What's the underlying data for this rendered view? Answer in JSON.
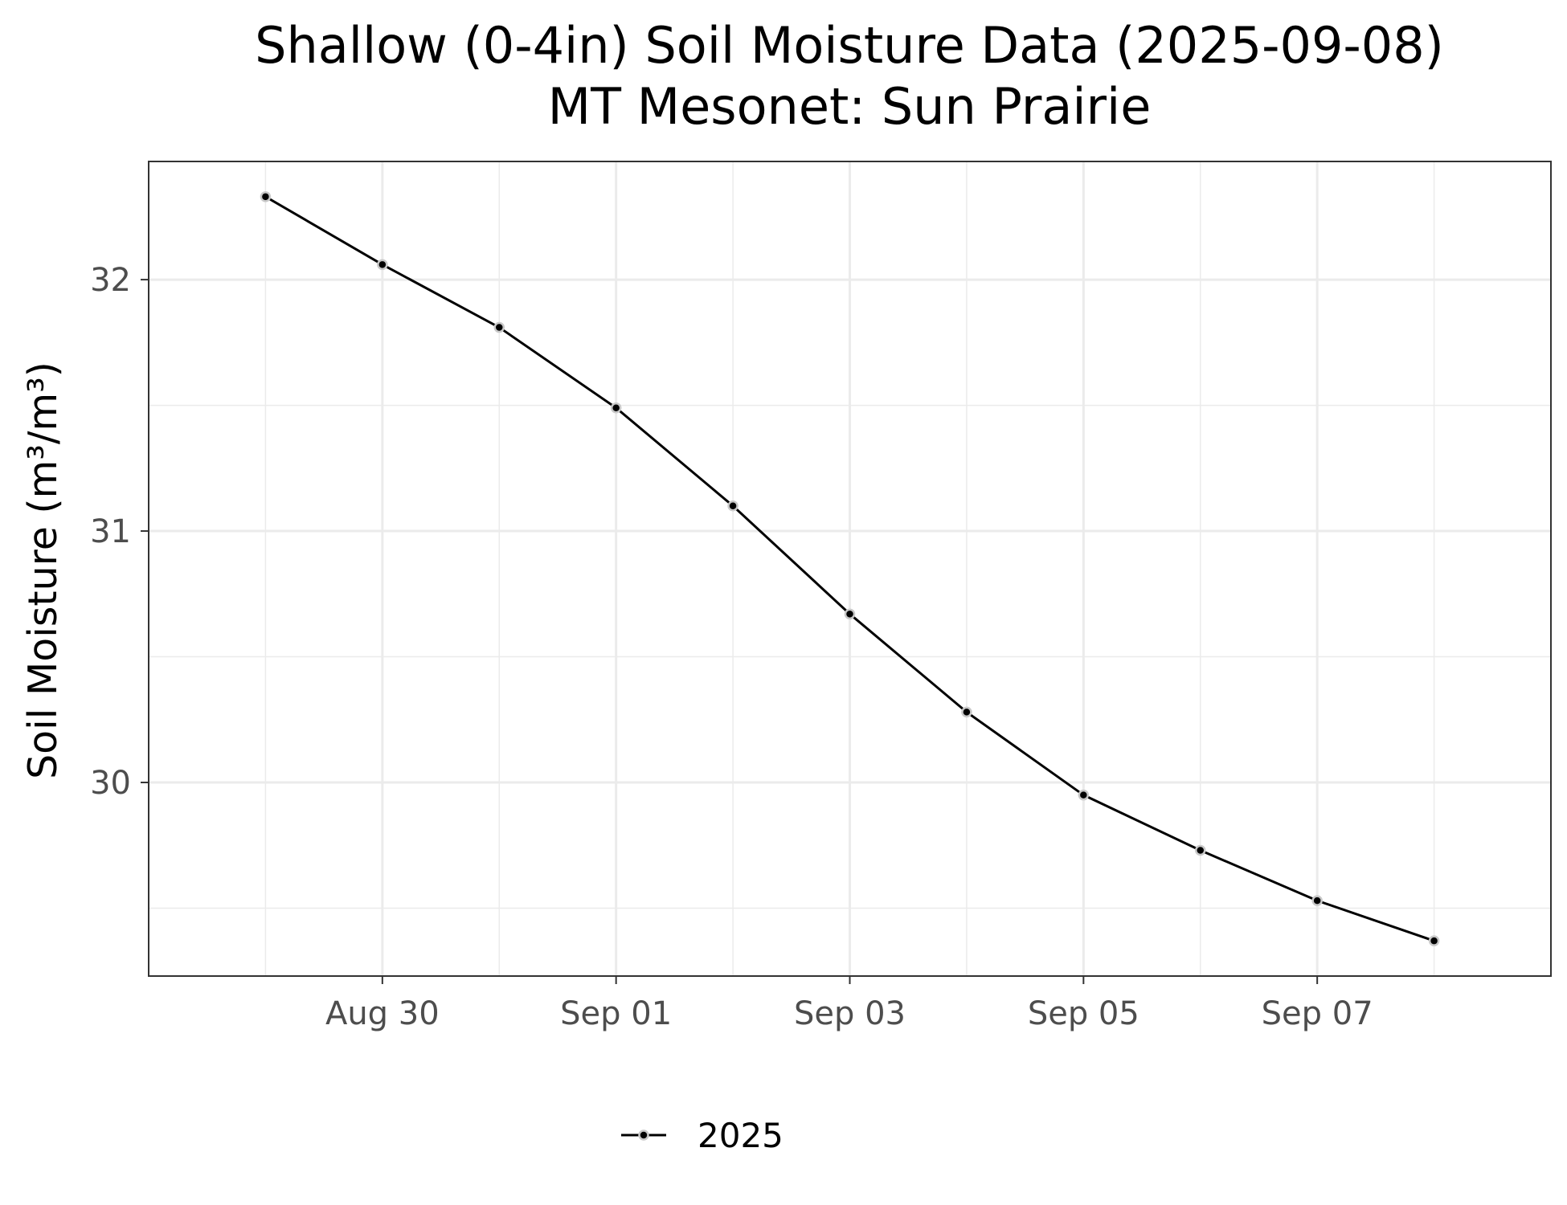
{
  "chart_data": {
    "type": "line",
    "title": "Shallow (0-4in) Soil Moisture Data (2025-09-08)",
    "subtitle": "MT Mesonet: Sun Prairie",
    "xlabel": "",
    "ylabel": "Soil Moisture (m³/m³)",
    "x": [
      "2025-08-29",
      "2025-08-30",
      "2025-08-31",
      "2025-09-01",
      "2025-09-02",
      "2025-09-03",
      "2025-09-04",
      "2025-09-05",
      "2025-09-06",
      "2025-09-07",
      "2025-09-08"
    ],
    "x_ticks": [
      "2025-08-30",
      "2025-09-01",
      "2025-09-03",
      "2025-09-05",
      "2025-09-07"
    ],
    "x_tick_labels": [
      "Aug 30",
      "Sep 01",
      "Sep 03",
      "Sep 05",
      "Sep 07"
    ],
    "xlim": [
      "2025-08-28",
      "2025-09-09"
    ],
    "y_ticks": [
      30,
      31,
      32
    ],
    "y_tick_labels": [
      "30",
      "31",
      "32"
    ],
    "ylim": [
      29.23,
      32.47
    ],
    "grid": true,
    "legend_position": "bottom",
    "series": [
      {
        "name": "2025",
        "color": "#000000",
        "marker_fill": "#000000",
        "marker_edge": "#c8c8c8",
        "values": [
          32.33,
          32.06,
          31.81,
          31.49,
          31.1,
          30.67,
          30.28,
          29.95,
          29.73,
          29.53,
          29.37
        ]
      }
    ]
  }
}
